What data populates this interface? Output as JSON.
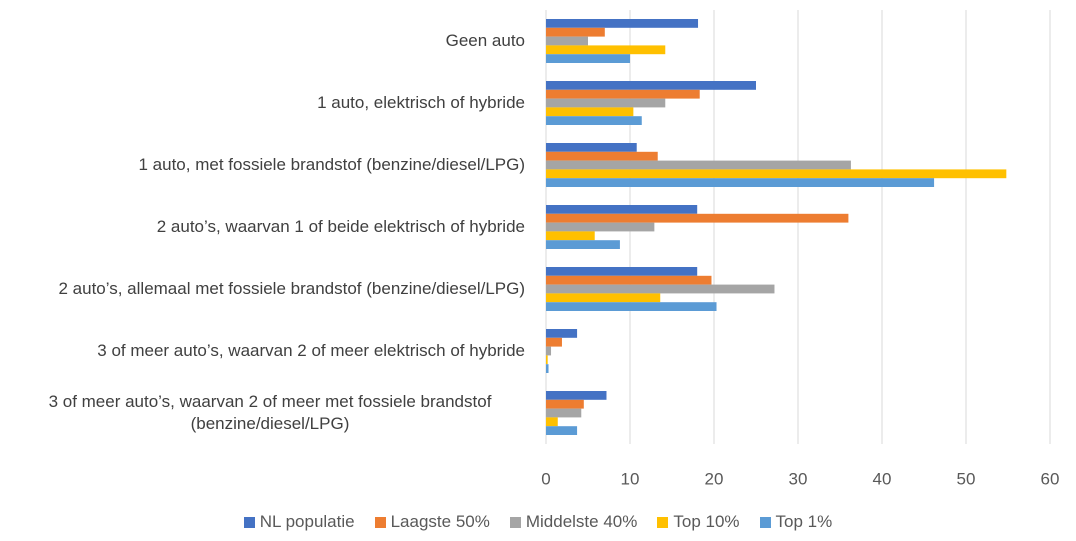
{
  "chart_data": {
    "type": "bar",
    "orientation": "horizontal",
    "categories": [
      "Geen auto",
      "1 auto, elektrisch of hybride",
      "1 auto, met fossiele brandstof (benzine/diesel/LPG)",
      "2 auto’s, waarvan 1 of beide elektrisch of hybride",
      "2 auto’s, allemaal met fossiele brandstof (benzine/diesel/LPG)",
      "3 of meer auto’s, waarvan 2 of meer elektrisch of hybride",
      "3 of meer auto’s, waarvan 2 of meer met fossiele brandstof (benzine/diesel/LPG)"
    ],
    "series": [
      {
        "name": "NL populatie",
        "color": "#4472c4",
        "values": [
          18.1,
          25,
          10.8,
          18,
          18,
          3.7,
          7.2
        ]
      },
      {
        "name": "Laagste 50%",
        "color": "#ed7d31",
        "values": [
          7,
          18.3,
          13.3,
          36,
          19.7,
          1.9,
          4.5
        ]
      },
      {
        "name": "Middelste 40%",
        "color": "#a5a5a5",
        "values": [
          5,
          14.2,
          36.3,
          12.9,
          27.2,
          0.6,
          4.2
        ]
      },
      {
        "name": "Top 10%",
        "color": "#ffc000",
        "values": [
          14.2,
          10.4,
          54.8,
          5.8,
          13.6,
          0.2,
          1.4
        ]
      },
      {
        "name": "Top 1%",
        "color": "#5b9bd5",
        "values": [
          10,
          11.4,
          46.2,
          8.8,
          20.3,
          0.3,
          3.7
        ]
      }
    ],
    "xlim": [
      0,
      60
    ],
    "xticks": [
      0,
      10,
      20,
      30,
      40,
      50,
      60
    ],
    "grid": true,
    "legend": "bottom"
  }
}
